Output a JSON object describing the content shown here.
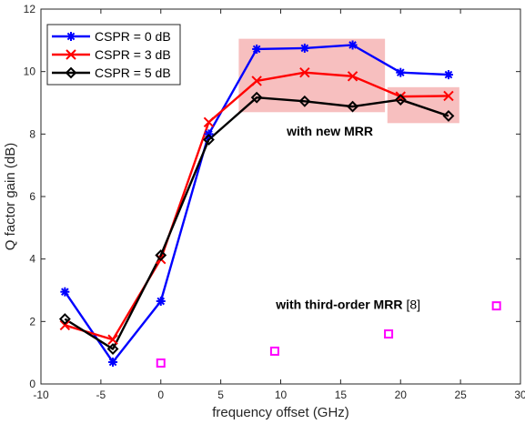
{
  "chart_data": {
    "type": "line",
    "xlabel": "frequency offset (GHz)",
    "ylabel": "Q factor gain (dB)",
    "xlim": [
      -10,
      30
    ],
    "ylim": [
      0,
      12
    ],
    "xticks": [
      "-10",
      "-5",
      "0",
      "5",
      "10",
      "15",
      "20",
      "25",
      "30"
    ],
    "yticks": [
      "0",
      "2",
      "4",
      "6",
      "8",
      "10",
      "12"
    ],
    "grid": false,
    "legend_position": "top-left",
    "series": [
      {
        "name": "CSPR = 0 dB",
        "color": "#0000ff",
        "marker": "asterisk",
        "x": [
          -8,
          -4,
          0,
          4,
          8,
          12,
          16,
          20,
          24
        ],
        "y": [
          2.95,
          0.7,
          2.65,
          8.0,
          10.72,
          10.75,
          10.85,
          9.97,
          9.9
        ]
      },
      {
        "name": "CSPR = 3 dB",
        "color": "#ff0000",
        "marker": "x",
        "x": [
          -8,
          -4,
          0,
          4,
          8,
          12,
          16,
          20,
          24
        ],
        "y": [
          1.88,
          1.42,
          4.0,
          8.38,
          9.7,
          9.97,
          9.85,
          9.2,
          9.22
        ]
      },
      {
        "name": "CSPR = 5 dB",
        "color": "#000000",
        "marker": "diamond",
        "x": [
          -8,
          -4,
          0,
          4,
          8,
          12,
          16,
          20,
          24
        ],
        "y": [
          2.08,
          1.12,
          4.12,
          7.82,
          9.17,
          9.05,
          8.88,
          9.1,
          8.58
        ]
      },
      {
        "color": "#ff00ff",
        "marker": "square",
        "line": false,
        "x": [
          0,
          9.5,
          19,
          28
        ],
        "y": [
          0.67,
          1.05,
          1.6,
          2.5
        ]
      }
    ],
    "highlight_regions": [
      {
        "x": [
          6.5,
          18.7
        ],
        "y": [
          8.7,
          11.05
        ]
      },
      {
        "x": [
          18.9,
          24.9
        ],
        "y": [
          8.35,
          9.5
        ]
      }
    ],
    "annotations": [
      {
        "text": "with new MRR",
        "x": 14.1,
        "y": 7.95
      },
      {
        "text": "with third-order MRR",
        "ref": "[8]",
        "x": 9.6,
        "y": 2.4
      }
    ],
    "highlight_color": "#f7bfbf"
  }
}
